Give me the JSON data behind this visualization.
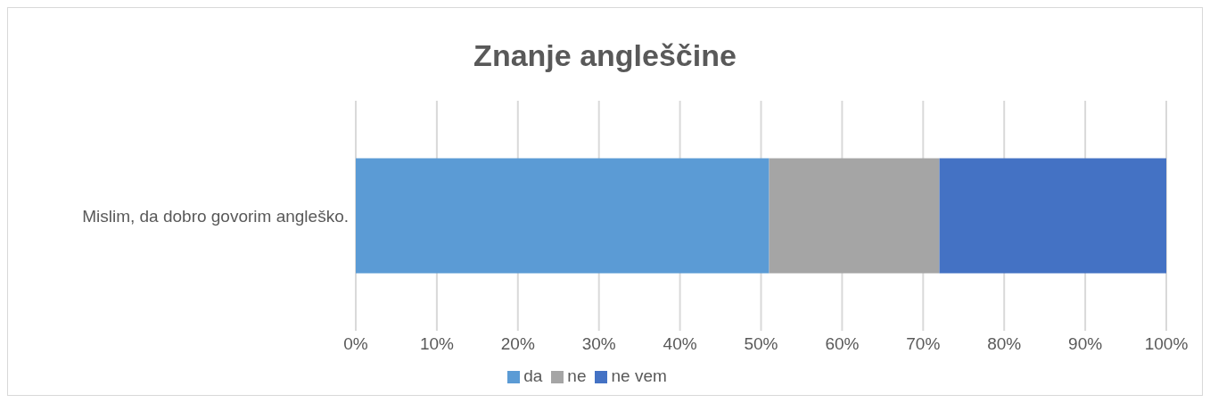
{
  "chart_data": {
    "type": "bar",
    "orientation": "horizontal",
    "stacked": true,
    "title": "Znanje angleščine",
    "categories": [
      "Mislim, da dobro govorim angleško."
    ],
    "series": [
      {
        "name": "da",
        "color": "#5b9bd5",
        "values": [
          51
        ]
      },
      {
        "name": "ne",
        "color": "#a5a5a5",
        "values": [
          21
        ]
      },
      {
        "name": "ne vem",
        "color": "#4472c4",
        "values": [
          28
        ]
      }
    ],
    "xlim": [
      0,
      100
    ],
    "xticks": [
      {
        "value": 0,
        "label": "0%"
      },
      {
        "value": 10,
        "label": "10%"
      },
      {
        "value": 20,
        "label": "20%"
      },
      {
        "value": 30,
        "label": "30%"
      },
      {
        "value": 40,
        "label": "40%"
      },
      {
        "value": 50,
        "label": "50%"
      },
      {
        "value": 60,
        "label": "60%"
      },
      {
        "value": 70,
        "label": "70%"
      },
      {
        "value": 80,
        "label": "80%"
      },
      {
        "value": 90,
        "label": "90%"
      },
      {
        "value": 100,
        "label": "100%"
      }
    ],
    "grid": "x",
    "legend": "bottom"
  }
}
